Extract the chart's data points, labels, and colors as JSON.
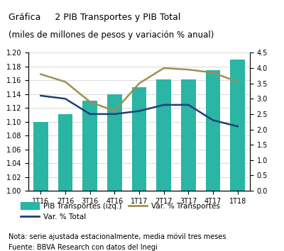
{
  "title_line1": "Gráfica     2 PIB Transportes y PIB Total",
  "title_line2": "(miles de millones de pesos y variación % anual)",
  "categories": [
    "1T16",
    "2T16",
    "3T16",
    "4T16",
    "1T17",
    "2T17",
    "3T17",
    "4T17",
    "1T18"
  ],
  "pib_transportes": [
    1.1,
    1.111,
    1.13,
    1.14,
    1.15,
    1.161,
    1.161,
    1.175,
    1.19
  ],
  "var_pct_total": [
    3.1,
    3.0,
    2.5,
    2.5,
    2.6,
    2.8,
    2.8,
    2.3,
    2.1
  ],
  "var_pct_transportes": [
    3.8,
    3.55,
    2.9,
    2.6,
    3.5,
    4.0,
    3.95,
    3.85,
    3.55
  ],
  "bar_color": "#2ab5a5",
  "line_total_color": "#1f3f7a",
  "line_transp_color": "#a09050",
  "left_ylim": [
    1.0,
    1.2
  ],
  "right_ylim": [
    0.0,
    4.5
  ],
  "left_yticks": [
    1.0,
    1.02,
    1.04,
    1.06,
    1.08,
    1.1,
    1.12,
    1.14,
    1.16,
    1.18,
    1.2
  ],
  "right_yticks": [
    0.0,
    0.5,
    1.0,
    1.5,
    2.0,
    2.5,
    3.0,
    3.5,
    4.0,
    4.5
  ],
  "legend_bar_label": "PIB Transportes (izq.)",
  "legend_total_label": "Var. % Total",
  "legend_transp_label": "Var. % Transportes",
  "nota": "Nota: serie ajustada estacionalmente, media móvil tres meses",
  "fuente": "Fuente: BBVA Research con datos del Inegi",
  "bg_title": "#d3d3d3",
  "bg_chart": "#ffffff",
  "bg_footer": "#e8e8e8",
  "grid_color": "#cccccc",
  "tick_label_fontsize": 7,
  "title_fontsize": 9,
  "legend_fontsize": 7.5,
  "note_fontsize": 7
}
